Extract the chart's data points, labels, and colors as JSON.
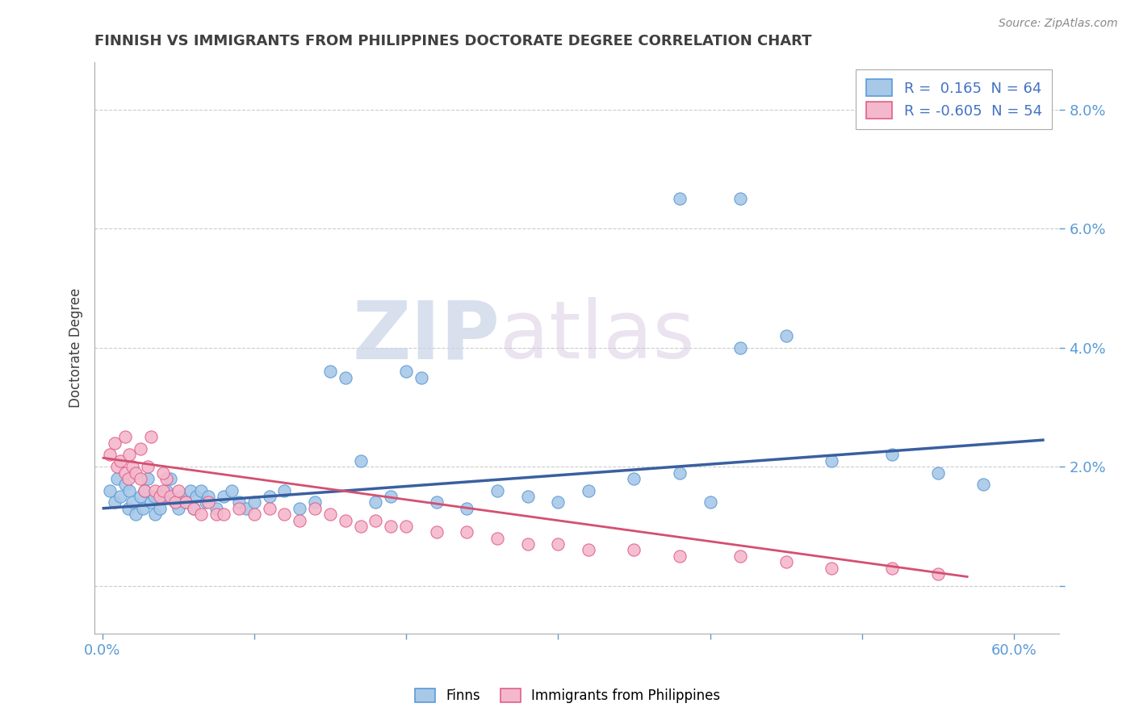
{
  "title": "FINNISH VS IMMIGRANTS FROM PHILIPPINES DOCTORATE DEGREE CORRELATION CHART",
  "source": "Source: ZipAtlas.com",
  "ylabel": "Doctorate Degree",
  "y_ticks": [
    0.0,
    0.02,
    0.04,
    0.06,
    0.08
  ],
  "y_tick_labels": [
    "",
    "2.0%",
    "4.0%",
    "6.0%",
    "8.0%"
  ],
  "xlim": [
    -0.005,
    0.63
  ],
  "ylim": [
    -0.008,
    0.088
  ],
  "finns_R": 0.165,
  "finns_N": 64,
  "phil_R": -0.605,
  "phil_N": 54,
  "finns_color": "#a8c8e8",
  "finns_edge_color": "#5b9bd5",
  "finns_line_color": "#3a5fa0",
  "phil_color": "#f4b8cc",
  "phil_edge_color": "#e0608a",
  "phil_line_color": "#d45070",
  "legend_label_finns": "Finns",
  "legend_label_phil": "Immigrants from Philippines",
  "finns_x": [
    0.005,
    0.008,
    0.01,
    0.012,
    0.015,
    0.017,
    0.018,
    0.02,
    0.022,
    0.025,
    0.027,
    0.028,
    0.03,
    0.032,
    0.034,
    0.035,
    0.038,
    0.04,
    0.042,
    0.045,
    0.048,
    0.05,
    0.052,
    0.055,
    0.058,
    0.06,
    0.062,
    0.065,
    0.068,
    0.07,
    0.075,
    0.08,
    0.085,
    0.09,
    0.095,
    0.1,
    0.11,
    0.12,
    0.13,
    0.14,
    0.15,
    0.16,
    0.17,
    0.18,
    0.19,
    0.2,
    0.21,
    0.22,
    0.24,
    0.26,
    0.28,
    0.3,
    0.32,
    0.35,
    0.38,
    0.4,
    0.42,
    0.45,
    0.48,
    0.52,
    0.55,
    0.38,
    0.42,
    0.58
  ],
  "finns_y": [
    0.016,
    0.014,
    0.018,
    0.015,
    0.017,
    0.013,
    0.016,
    0.014,
    0.012,
    0.015,
    0.013,
    0.016,
    0.018,
    0.014,
    0.015,
    0.012,
    0.013,
    0.015,
    0.016,
    0.018,
    0.014,
    0.013,
    0.015,
    0.014,
    0.016,
    0.013,
    0.015,
    0.016,
    0.014,
    0.015,
    0.013,
    0.015,
    0.016,
    0.014,
    0.013,
    0.014,
    0.015,
    0.016,
    0.013,
    0.014,
    0.036,
    0.035,
    0.021,
    0.014,
    0.015,
    0.036,
    0.035,
    0.014,
    0.013,
    0.016,
    0.015,
    0.014,
    0.016,
    0.018,
    0.019,
    0.014,
    0.04,
    0.042,
    0.021,
    0.022,
    0.019,
    0.065,
    0.065,
    0.017
  ],
  "phil_x": [
    0.005,
    0.008,
    0.01,
    0.012,
    0.015,
    0.017,
    0.018,
    0.02,
    0.022,
    0.025,
    0.028,
    0.03,
    0.032,
    0.035,
    0.038,
    0.04,
    0.042,
    0.045,
    0.048,
    0.05,
    0.055,
    0.06,
    0.065,
    0.07,
    0.075,
    0.08,
    0.09,
    0.1,
    0.11,
    0.12,
    0.13,
    0.14,
    0.15,
    0.16,
    0.17,
    0.18,
    0.19,
    0.2,
    0.22,
    0.24,
    0.26,
    0.28,
    0.3,
    0.32,
    0.35,
    0.38,
    0.42,
    0.45,
    0.48,
    0.52,
    0.55,
    0.015,
    0.025,
    0.04
  ],
  "phil_y": [
    0.022,
    0.024,
    0.02,
    0.021,
    0.019,
    0.018,
    0.022,
    0.02,
    0.019,
    0.018,
    0.016,
    0.02,
    0.025,
    0.016,
    0.015,
    0.016,
    0.018,
    0.015,
    0.014,
    0.016,
    0.014,
    0.013,
    0.012,
    0.014,
    0.012,
    0.012,
    0.013,
    0.012,
    0.013,
    0.012,
    0.011,
    0.013,
    0.012,
    0.011,
    0.01,
    0.011,
    0.01,
    0.01,
    0.009,
    0.009,
    0.008,
    0.007,
    0.007,
    0.006,
    0.006,
    0.005,
    0.005,
    0.004,
    0.003,
    0.003,
    0.002,
    0.025,
    0.023,
    0.019
  ],
  "finns_trend_x": [
    0.0,
    0.62
  ],
  "finns_trend_y": [
    0.013,
    0.0245
  ],
  "phil_trend_x": [
    0.0,
    0.57
  ],
  "phil_trend_y": [
    0.0215,
    0.0015
  ],
  "watermark_zip": "ZIP",
  "watermark_atlas": "atlas",
  "background_color": "#ffffff",
  "grid_color": "#cccccc",
  "title_color": "#404040",
  "tick_color": "#5b9bd5"
}
